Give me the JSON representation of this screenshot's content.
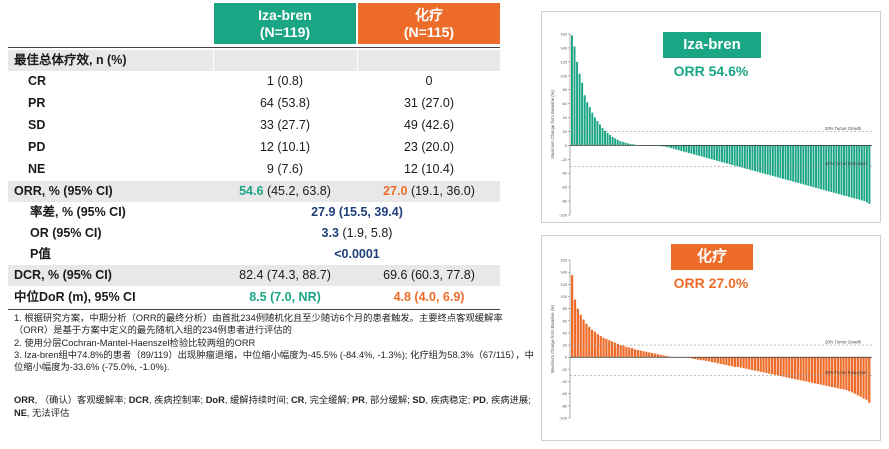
{
  "table": {
    "col_iza": {
      "name": "Iza-bren",
      "n": "(N=119)"
    },
    "col_chemo": {
      "name": "化疗",
      "n": "(N=115)"
    },
    "bor_header": "最佳总体疗效, n (%)",
    "bor_rows": [
      {
        "label": "CR",
        "iza": "1 (0.8)",
        "chemo": "0"
      },
      {
        "label": "PR",
        "iza": "64 (53.8)",
        "chemo": "31 (27.0)"
      },
      {
        "label": "SD",
        "iza": "33 (27.7)",
        "chemo": "49 (42.6)"
      },
      {
        "label": "PD",
        "iza": "12 (10.1)",
        "chemo": "23 (20.0)"
      },
      {
        "label": "NE",
        "iza": "9 (7.6)",
        "chemo": "12 (10.4)"
      }
    ],
    "orr": {
      "label": "ORR, % (95% CI)",
      "iza_main": "54.6",
      "iza_ci": "(45.2, 63.8)",
      "chemo_main": "27.0",
      "chemo_ci": "(19.1, 36.0)"
    },
    "diff": {
      "label": "率差, % (95% CI)",
      "value": "27.9 (15.5, 39.4)"
    },
    "or": {
      "label": "OR (95% CI)",
      "main": "3.3",
      "ci": "(1.9, 5.8)"
    },
    "p": {
      "label": "P值",
      "value": "<0.0001"
    },
    "dcr": {
      "label": "DCR, % (95% CI)",
      "iza": "82.4 (74.3, 88.7)",
      "chemo": "69.6 (60.3, 77.8)"
    },
    "dor": {
      "label": "中位DoR (m), 95% CI",
      "iza": "8.5 (7.0, NR)",
      "chemo": "4.8 (4.0, 6.9)"
    }
  },
  "footnotes": [
    "1. 根据研究方案，中期分析（ORR的最终分析）由首批234例随机化且至少随访6个月的患者触发。主要终点客观缓解率（ORR）是基于方案中定义的最先随机入组的234例患者进行评估的",
    "2. 使用分层Cochran-Mantel-Haenszel检验比较两组的ORR",
    "3. Iza-bren组中74.8%的患者（89/119）出现肿瘤退缩，中位缩小幅度为-45.5% (-84.4%, -1.3%); 化疗组为58.3%（67/115），中位缩小幅度为-33.6% (-75.0%, -1.0%)."
  ],
  "abbreviations": [
    {
      "term": "ORR",
      "def": "（确认）客观缓解率"
    },
    {
      "term": "DCR",
      "def": "疾病控制率"
    },
    {
      "term": "DoR",
      "def": "缓解持续时间"
    },
    {
      "term": "CR",
      "def": "完全缓解"
    },
    {
      "term": "PR",
      "def": "部分缓解"
    },
    {
      "term": "SD",
      "def": "疾病稳定"
    },
    {
      "term": "PD",
      "def": "疾病进展"
    },
    {
      "term": "NE",
      "def": "无法评估"
    }
  ],
  "colors": {
    "teal": "#1aa584",
    "orange": "#ee6c2a",
    "navy": "#1f3f7a"
  },
  "chart_data": [
    {
      "type": "bar",
      "badge": "Iza-bren",
      "orr_text": "ORR 54.6%",
      "ylabel": "Maximum Change from Baseline (%)",
      "ylim": [
        -100,
        160
      ],
      "yticks": [
        160,
        140,
        120,
        100,
        80,
        60,
        40,
        20,
        0,
        -20,
        -40,
        -60,
        -80,
        -100
      ],
      "ref_lines": [
        {
          "value": 20,
          "label": "20% Tumor Growth"
        },
        {
          "value": -30,
          "label": "30% Tumor Reduction"
        }
      ],
      "color": "#1aa584",
      "values": [
        158,
        142,
        120,
        103,
        90,
        72,
        62,
        55,
        47,
        40,
        35,
        30,
        25,
        21,
        18,
        15,
        12,
        10,
        8,
        6,
        5,
        4,
        3,
        2,
        1.5,
        1,
        0.5,
        0.2,
        0,
        0,
        0,
        0,
        0,
        0,
        0,
        -1,
        -1.5,
        -2,
        -3,
        -4,
        -5,
        -6,
        -7,
        -8,
        -9,
        -10,
        -11,
        -12,
        -13,
        -14,
        -15,
        -16,
        -17,
        -18,
        -19,
        -20,
        -21,
        -22,
        -23,
        -24,
        -25,
        -26,
        -27,
        -28,
        -29,
        -30,
        -31,
        -32,
        -33,
        -34,
        -35,
        -36,
        -37,
        -38,
        -39,
        -40,
        -41,
        -42,
        -43,
        -44,
        -45,
        -46,
        -47,
        -48,
        -49,
        -50,
        -51,
        -52,
        -53,
        -54,
        -55,
        -56,
        -57,
        -58,
        -59,
        -60,
        -61,
        -62,
        -63,
        -64,
        -65,
        -66,
        -67,
        -68,
        -69,
        -70,
        -71,
        -72,
        -73,
        -74,
        -75,
        -76,
        -77,
        -78,
        -79,
        -80,
        -82,
        -84
      ]
    },
    {
      "type": "bar",
      "badge": "化疗",
      "orr_text": "ORR 27.0%",
      "ylabel": "Maximum Change from Baseline (%)",
      "ylim": [
        -100,
        160
      ],
      "yticks": [
        160,
        140,
        120,
        100,
        80,
        60,
        40,
        20,
        0,
        -20,
        -40,
        -60,
        -80,
        -100
      ],
      "ref_lines": [
        {
          "value": 20,
          "label": "20% Tumor Growth"
        },
        {
          "value": -30,
          "label": "30% Tumor Reduction"
        }
      ],
      "color": "#ee6c2a",
      "values": [
        135,
        95,
        80,
        70,
        62,
        55,
        50,
        45,
        42,
        38,
        35,
        32,
        30,
        28,
        26,
        24,
        22,
        20,
        19,
        17,
        16,
        15,
        13,
        12,
        11,
        10,
        9,
        8,
        7,
        6,
        5,
        4,
        3,
        2,
        1,
        0,
        0,
        0,
        0,
        0,
        0,
        -1,
        -2,
        -3,
        -4,
        -5,
        -5,
        -6,
        -7,
        -8,
        -9,
        -10,
        -11,
        -12,
        -13,
        -14,
        -15,
        -16,
        -16,
        -17,
        -18,
        -19,
        -20,
        -21,
        -22,
        -23,
        -24,
        -25,
        -26,
        -27,
        -28,
        -29,
        -30,
        -31,
        -32,
        -33,
        -34,
        -35,
        -36,
        -37,
        -38,
        -39,
        -40,
        -41,
        -42,
        -43,
        -44,
        -45,
        -46,
        -47,
        -48,
        -49,
        -50,
        -51,
        -52,
        -53,
        -54,
        -56,
        -58,
        -60,
        -63,
        -65,
        -68,
        -70,
        -75
      ]
    }
  ]
}
